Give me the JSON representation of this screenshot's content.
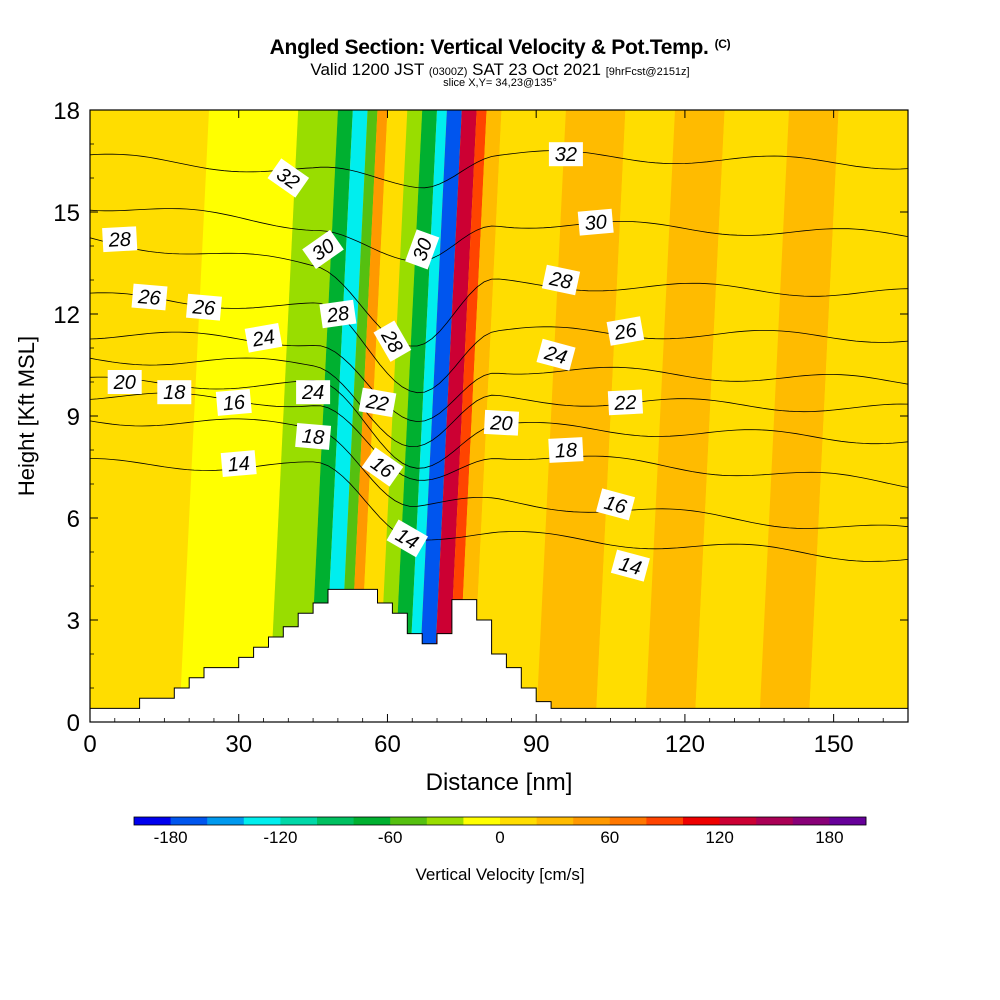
{
  "title": {
    "main": "Angled Section: Vertical Velocity & Pot.Temp.",
    "main_unit": "(C)",
    "valid_a": "Valid 1200 JST",
    "valid_utc": "(0300Z)",
    "valid_b": "SAT 23 Oct 2021",
    "valid_fcst": "[9hrFcst@2151z]",
    "slice": "slice X,Y= 34,23@135°"
  },
  "chart_data": {
    "type": "heatmap",
    "xlabel": "Distance [nm]",
    "ylabel": "Height [Kft MSL]",
    "xlim": [
      0,
      165
    ],
    "ylim": [
      0,
      18
    ],
    "xticks": [
      0,
      30,
      60,
      90,
      120,
      150
    ],
    "yticks": [
      0,
      3,
      6,
      9,
      12,
      15,
      18
    ],
    "colorbar": {
      "label": "Vertical Velocity [cm/s]",
      "ticks": [
        -180,
        -120,
        -60,
        0,
        60,
        120,
        180
      ],
      "colors": [
        "#0000ee",
        "#0055ee",
        "#0099ee",
        "#00eeee",
        "#00d8a8",
        "#00c060",
        "#00b030",
        "#55c010",
        "#99dd00",
        "#ffff00",
        "#ffdd00",
        "#ffbb00",
        "#ff9900",
        "#ff7700",
        "#ff4400",
        "#ee0000",
        "#cc0033",
        "#aa0055",
        "#880077",
        "#660099"
      ]
    },
    "velocity_bands": [
      {
        "x": 0,
        "w": 18,
        "v": 0
      },
      {
        "x": 18,
        "w": 18,
        "v": -20
      },
      {
        "x": 36,
        "w": 8,
        "v": -40
      },
      {
        "x": 44,
        "w": 3,
        "v": -80
      },
      {
        "x": 47,
        "w": 3,
        "v": -130
      },
      {
        "x": 50,
        "w": 2,
        "v": -60
      },
      {
        "x": 52,
        "w": 2,
        "v": 40
      },
      {
        "x": 54,
        "w": 4,
        "v": 0
      },
      {
        "x": 58,
        "w": 3,
        "v": -30
      },
      {
        "x": 61,
        "w": 3,
        "v": -80
      },
      {
        "x": 64,
        "w": 2,
        "v": -140
      },
      {
        "x": 66,
        "w": 3,
        "v": -180
      },
      {
        "x": 69,
        "w": 3,
        "v": 120
      },
      {
        "x": 72,
        "w": 2,
        "v": 80
      },
      {
        "x": 74,
        "w": 3,
        "v": 30
      },
      {
        "x": 77,
        "w": 13,
        "v": 0
      },
      {
        "x": 90,
        "w": 12,
        "v": 20
      },
      {
        "x": 102,
        "w": 10,
        "v": 0
      },
      {
        "x": 112,
        "w": 10,
        "v": 20
      },
      {
        "x": 122,
        "w": 13,
        "v": 0
      },
      {
        "x": 135,
        "w": 10,
        "v": 20
      },
      {
        "x": 145,
        "w": 20,
        "v": 0
      }
    ],
    "terrain": [
      [
        0,
        0.4
      ],
      [
        10,
        0.4
      ],
      [
        10,
        0.7
      ],
      [
        17,
        0.7
      ],
      [
        17,
        1.0
      ],
      [
        20,
        1.0
      ],
      [
        20,
        1.3
      ],
      [
        23,
        1.3
      ],
      [
        23,
        1.6
      ],
      [
        30,
        1.6
      ],
      [
        30,
        1.9
      ],
      [
        33,
        1.9
      ],
      [
        33,
        2.2
      ],
      [
        36,
        2.2
      ],
      [
        36,
        2.5
      ],
      [
        39,
        2.5
      ],
      [
        39,
        2.8
      ],
      [
        42,
        2.8
      ],
      [
        42,
        3.2
      ],
      [
        45,
        3.2
      ],
      [
        45,
        3.5
      ],
      [
        48,
        3.5
      ],
      [
        48,
        3.9
      ],
      [
        58,
        3.9
      ],
      [
        58,
        3.5
      ],
      [
        61,
        3.5
      ],
      [
        61,
        3.2
      ],
      [
        64,
        3.2
      ],
      [
        64,
        2.6
      ],
      [
        67,
        2.6
      ],
      [
        67,
        2.3
      ],
      [
        70,
        2.3
      ],
      [
        70,
        2.6
      ],
      [
        73,
        2.6
      ],
      [
        73,
        3.6
      ],
      [
        78,
        3.6
      ],
      [
        78,
        3.0
      ],
      [
        81,
        3.0
      ],
      [
        81,
        2.0
      ],
      [
        84,
        2.0
      ],
      [
        84,
        1.6
      ],
      [
        87,
        1.6
      ],
      [
        87,
        1.0
      ],
      [
        90,
        1.0
      ],
      [
        90,
        0.6
      ],
      [
        93,
        0.6
      ],
      [
        93,
        0.4
      ],
      [
        165,
        0.4
      ]
    ],
    "isotherms": [
      {
        "value": 14,
        "left": 7.6,
        "west": 7.5,
        "trough": 5.5,
        "east": 5.5,
        "right": 4.8
      },
      {
        "value": 16,
        "left": 8.9,
        "west": 8.7,
        "trough": 6.3,
        "east": 6.5,
        "right": 5.6
      },
      {
        "value": 18,
        "left": 9.6,
        "west": 9.4,
        "trough": 7.0,
        "east": 7.9,
        "right": 7.0
      },
      {
        "value": 20,
        "left": 10.0,
        "west": 9.9,
        "trough": 7.6,
        "east": 8.7,
        "right": 8.3
      },
      {
        "value": 22,
        "left": 10.7,
        "west": 10.5,
        "trough": 8.1,
        "east": 9.5,
        "right": 9.2
      },
      {
        "value": 24,
        "left": 11.4,
        "west": 11.2,
        "trough": 8.7,
        "east": 10.4,
        "right": 10.0
      },
      {
        "value": 26,
        "left": 12.5,
        "west": 12.2,
        "trough": 9.8,
        "east": 11.5,
        "right": 11.3
      },
      {
        "value": 28,
        "left": 14.2,
        "west": 13.4,
        "trough": 11.1,
        "east": 12.9,
        "right": 12.6
      },
      {
        "value": 30,
        "left": 15.2,
        "west": 14.6,
        "trough": 13.4,
        "east": 14.7,
        "right": 14.3
      },
      {
        "value": 32,
        "left": 16.6,
        "west": 16.2,
        "trough": 15.8,
        "east": 16.7,
        "right": 16.4
      }
    ],
    "contour_labels": [
      {
        "text": "32",
        "x": 40,
        "y": 16.0,
        "rot": 35
      },
      {
        "text": "32",
        "x": 96,
        "y": 16.7,
        "rot": 0
      },
      {
        "text": "30",
        "x": 47,
        "y": 13.9,
        "rot": -35
      },
      {
        "text": "30",
        "x": 67,
        "y": 13.9,
        "rot": -70
      },
      {
        "text": "30",
        "x": 102,
        "y": 14.7,
        "rot": -5
      },
      {
        "text": "28",
        "x": 6,
        "y": 14.2,
        "rot": -3
      },
      {
        "text": "28",
        "x": 50,
        "y": 12.0,
        "rot": -8
      },
      {
        "text": "28",
        "x": 61,
        "y": 11.2,
        "rot": 60
      },
      {
        "text": "28",
        "x": 95,
        "y": 13.0,
        "rot": 12
      },
      {
        "text": "26",
        "x": 12,
        "y": 12.5,
        "rot": 5
      },
      {
        "text": "26",
        "x": 23,
        "y": 12.2,
        "rot": 5
      },
      {
        "text": "26",
        "x": 108,
        "y": 11.5,
        "rot": -10
      },
      {
        "text": "24",
        "x": 35,
        "y": 11.3,
        "rot": -10
      },
      {
        "text": "24",
        "x": 45,
        "y": 9.7,
        "rot": 0
      },
      {
        "text": "24",
        "x": 94,
        "y": 10.8,
        "rot": 15
      },
      {
        "text": "22",
        "x": 58,
        "y": 9.4,
        "rot": 10
      },
      {
        "text": "22",
        "x": 108,
        "y": 9.4,
        "rot": -3
      },
      {
        "text": "20",
        "x": 7,
        "y": 10.0,
        "rot": 0
      },
      {
        "text": "20",
        "x": 83,
        "y": 8.8,
        "rot": 3
      },
      {
        "text": "18",
        "x": 17,
        "y": 9.7,
        "rot": 0
      },
      {
        "text": "18",
        "x": 45,
        "y": 8.4,
        "rot": 5
      },
      {
        "text": "18",
        "x": 96,
        "y": 8.0,
        "rot": -3
      },
      {
        "text": "16",
        "x": 29,
        "y": 9.4,
        "rot": -5
      },
      {
        "text": "16",
        "x": 59,
        "y": 7.5,
        "rot": 35
      },
      {
        "text": "16",
        "x": 106,
        "y": 6.4,
        "rot": 15
      },
      {
        "text": "14",
        "x": 30,
        "y": 7.6,
        "rot": -5
      },
      {
        "text": "14",
        "x": 64,
        "y": 5.4,
        "rot": 30
      },
      {
        "text": "14",
        "x": 109,
        "y": 4.6,
        "rot": 15
      }
    ]
  }
}
